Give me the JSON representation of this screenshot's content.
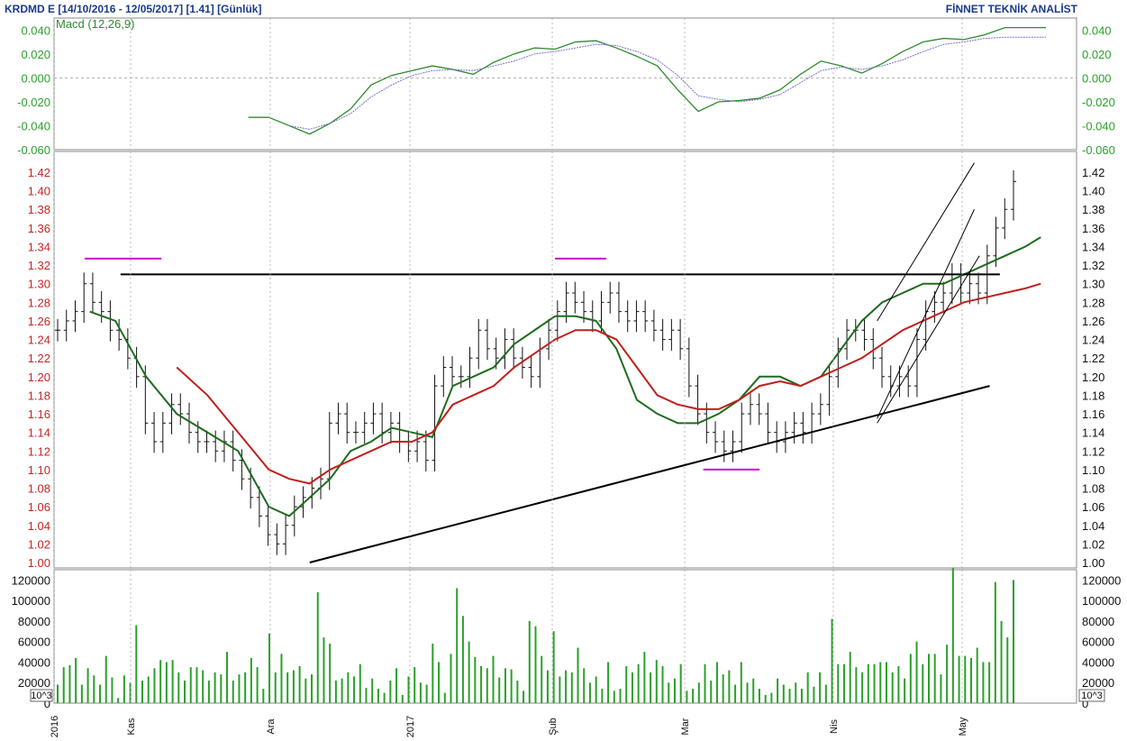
{
  "header": {
    "title": "KRDMD E  [14/10/2016 - 12/05/2017]  [1.41]  [Günlük]",
    "brand": "FİNNET TEKNİK ANALİST"
  },
  "colors": {
    "price_axis": "#cc2222",
    "macd_axis": "#2aa02a",
    "volume": "#2aa02a",
    "ema_fast": "#1f6b1f",
    "ema_slow": "#c0201c",
    "macd_line": "#2e8b2e",
    "signal_line": "#7a6fc8",
    "trendline": "#000000",
    "marker": "#cc00cc"
  },
  "chart_data": [
    {
      "type": "line",
      "panel": "macd",
      "title": "Macd (12,26,9)",
      "ylim": [
        -0.06,
        0.05
      ],
      "yticks": [
        "0.040",
        "0.020",
        "0.000",
        "-0.020",
        "-0.040",
        "-0.060"
      ],
      "series": [
        {
          "role": "macd",
          "x": [
            0.19,
            0.21,
            0.23,
            0.25,
            0.27,
            0.29,
            0.31,
            0.33,
            0.35,
            0.37,
            0.39,
            0.41,
            0.43,
            0.45,
            0.47,
            0.49,
            0.51,
            0.53,
            0.55,
            0.57,
            0.59,
            0.61,
            0.63,
            0.65,
            0.67,
            0.69,
            0.71,
            0.73,
            0.75,
            0.77,
            0.79,
            0.81,
            0.83,
            0.85,
            0.87,
            0.89,
            0.91,
            0.93,
            0.95,
            0.97
          ],
          "values": [
            -0.033,
            -0.033,
            -0.04,
            -0.047,
            -0.038,
            -0.026,
            -0.006,
            0.002,
            0.006,
            0.01,
            0.007,
            0.003,
            0.013,
            0.02,
            0.025,
            0.024,
            0.03,
            0.031,
            0.025,
            0.018,
            0.01,
            -0.01,
            -0.028,
            -0.02,
            -0.019,
            -0.017,
            -0.01,
            0.003,
            0.014,
            0.01,
            0.004,
            0.012,
            0.022,
            0.03,
            0.033,
            0.032,
            0.036,
            0.042,
            0.042,
            0.042
          ]
        },
        {
          "role": "signal",
          "x": [
            0.23,
            0.25,
            0.27,
            0.29,
            0.31,
            0.33,
            0.35,
            0.37,
            0.39,
            0.41,
            0.43,
            0.45,
            0.47,
            0.49,
            0.51,
            0.53,
            0.55,
            0.57,
            0.59,
            0.61,
            0.63,
            0.65,
            0.67,
            0.69,
            0.71,
            0.73,
            0.75,
            0.77,
            0.79,
            0.81,
            0.83,
            0.85,
            0.87,
            0.89,
            0.91,
            0.93,
            0.95,
            0.97
          ],
          "values": [
            -0.04,
            -0.043,
            -0.038,
            -0.03,
            -0.016,
            -0.006,
            0.002,
            0.006,
            0.007,
            0.006,
            0.01,
            0.014,
            0.02,
            0.022,
            0.025,
            0.028,
            0.027,
            0.022,
            0.015,
            0.002,
            -0.015,
            -0.018,
            -0.02,
            -0.018,
            -0.014,
            -0.004,
            0.006,
            0.009,
            0.007,
            0.01,
            0.015,
            0.022,
            0.028,
            0.03,
            0.033,
            0.034,
            0.034,
            0.034
          ]
        }
      ]
    },
    {
      "type": "candlestick",
      "panel": "price",
      "ylim": [
        1.0,
        1.44
      ],
      "yticks": [
        "1.42",
        "1.40",
        "1.38",
        "1.36",
        "1.34",
        "1.32",
        "1.30",
        "1.28",
        "1.26",
        "1.24",
        "1.22",
        "1.20",
        "1.18",
        "1.16",
        "1.14",
        "1.12",
        "1.10",
        "1.08",
        "1.06",
        "1.04",
        "1.02",
        "1.00"
      ],
      "x_labels": [
        "2016",
        "Kas",
        "Ara",
        "2017",
        "Şub",
        "Mar",
        "Nis",
        "May"
      ],
      "close": [
        1.25,
        1.26,
        1.27,
        1.3,
        1.28,
        1.27,
        1.25,
        1.24,
        1.22,
        1.2,
        1.15,
        1.13,
        1.15,
        1.17,
        1.16,
        1.14,
        1.13,
        1.13,
        1.12,
        1.13,
        1.11,
        1.09,
        1.07,
        1.05,
        1.03,
        1.02,
        1.04,
        1.06,
        1.07,
        1.08,
        1.09,
        1.15,
        1.16,
        1.14,
        1.14,
        1.15,
        1.16,
        1.14,
        1.15,
        1.13,
        1.12,
        1.13,
        1.11,
        1.19,
        1.21,
        1.2,
        1.2,
        1.22,
        1.25,
        1.23,
        1.22,
        1.24,
        1.22,
        1.21,
        1.2,
        1.23,
        1.25,
        1.27,
        1.29,
        1.28,
        1.27,
        1.26,
        1.28,
        1.29,
        1.27,
        1.26,
        1.27,
        1.26,
        1.25,
        1.24,
        1.25,
        1.23,
        1.19,
        1.16,
        1.14,
        1.13,
        1.12,
        1.13,
        1.16,
        1.17,
        1.16,
        1.14,
        1.13,
        1.14,
        1.15,
        1.14,
        1.16,
        1.17,
        1.2,
        1.23,
        1.25,
        1.25,
        1.24,
        1.22,
        1.2,
        1.19,
        1.2,
        1.19,
        1.24,
        1.27,
        1.28,
        1.29,
        1.31,
        1.29,
        1.3,
        1.29,
        1.33,
        1.36,
        1.38,
        1.41
      ],
      "ema_fast": {
        "x": [
          0.035,
          0.06,
          0.09,
          0.12,
          0.15,
          0.18,
          0.21,
          0.23,
          0.25,
          0.27,
          0.29,
          0.31,
          0.33,
          0.35,
          0.37,
          0.39,
          0.41,
          0.43,
          0.45,
          0.47,
          0.49,
          0.51,
          0.53,
          0.55,
          0.57,
          0.59,
          0.61,
          0.63,
          0.65,
          0.67,
          0.69,
          0.71,
          0.73,
          0.75,
          0.77,
          0.79,
          0.81,
          0.83,
          0.85,
          0.87,
          0.89,
          0.91,
          0.93,
          0.95,
          0.965
        ],
        "values": [
          1.27,
          1.26,
          1.2,
          1.16,
          1.14,
          1.12,
          1.06,
          1.05,
          1.07,
          1.09,
          1.12,
          1.13,
          1.145,
          1.14,
          1.135,
          1.19,
          1.2,
          1.21,
          1.235,
          1.25,
          1.265,
          1.265,
          1.26,
          1.23,
          1.175,
          1.16,
          1.15,
          1.15,
          1.16,
          1.175,
          1.2,
          1.2,
          1.19,
          1.2,
          1.23,
          1.26,
          1.28,
          1.29,
          1.3,
          1.3,
          1.31,
          1.32,
          1.33,
          1.34,
          1.35
        ]
      },
      "ema_slow": {
        "x": [
          0.12,
          0.15,
          0.18,
          0.21,
          0.23,
          0.25,
          0.27,
          0.29,
          0.31,
          0.33,
          0.35,
          0.37,
          0.39,
          0.41,
          0.43,
          0.45,
          0.47,
          0.49,
          0.51,
          0.53,
          0.55,
          0.57,
          0.59,
          0.61,
          0.63,
          0.65,
          0.67,
          0.69,
          0.71,
          0.73,
          0.75,
          0.77,
          0.79,
          0.81,
          0.83,
          0.85,
          0.87,
          0.89,
          0.91,
          0.93,
          0.95,
          0.965
        ],
        "values": [
          1.21,
          1.18,
          1.14,
          1.1,
          1.09,
          1.085,
          1.1,
          1.11,
          1.12,
          1.13,
          1.13,
          1.14,
          1.17,
          1.18,
          1.19,
          1.21,
          1.225,
          1.24,
          1.25,
          1.25,
          1.24,
          1.21,
          1.18,
          1.17,
          1.165,
          1.165,
          1.175,
          1.19,
          1.195,
          1.19,
          1.2,
          1.21,
          1.22,
          1.235,
          1.25,
          1.26,
          1.27,
          1.28,
          1.285,
          1.29,
          1.295,
          1.3
        ]
      },
      "lines": [
        {
          "name": "resistance",
          "x": [
            0.065,
            0.925
          ],
          "y": [
            1.31,
            1.31
          ]
        },
        {
          "name": "support",
          "x": [
            0.25,
            0.915
          ],
          "y": [
            1.0,
            1.19
          ]
        },
        {
          "name": "channel-upper",
          "x": [
            0.805,
            0.9
          ],
          "y": [
            1.26,
            1.43
          ]
        },
        {
          "name": "channel-mid",
          "x": [
            0.805,
            0.9
          ],
          "y": [
            1.155,
            1.38
          ]
        },
        {
          "name": "channel-lower",
          "x": [
            0.805,
            0.905
          ],
          "y": [
            1.15,
            1.33
          ]
        }
      ],
      "markers": [
        {
          "x": [
            0.03,
            0.105
          ],
          "y": 1.327
        },
        {
          "x": [
            0.49,
            0.54
          ],
          "y": 1.327
        },
        {
          "x": [
            0.635,
            0.69
          ],
          "y": 1.1
        }
      ]
    },
    {
      "type": "bar",
      "panel": "volume",
      "ylim": [
        0,
        130000
      ],
      "yticks": [
        "120000",
        "100000",
        "80000",
        "60000",
        "40000",
        "20000",
        "0"
      ],
      "unit_label": "10^3",
      "values": [
        18,
        35,
        37,
        44,
        18,
        34,
        27,
        18,
        46,
        25,
        5,
        27,
        20,
        76,
        22,
        26,
        34,
        42,
        40,
        42,
        30,
        22,
        35,
        35,
        32,
        22,
        30,
        28,
        50,
        22,
        28,
        30,
        44,
        35,
        14,
        68,
        30,
        48,
        30,
        32,
        36,
        24,
        28,
        108,
        64,
        58,
        22,
        24,
        30,
        26,
        38,
        15,
        24,
        14,
        10,
        22,
        34,
        8,
        26,
        35,
        20,
        18,
        58,
        40,
        10,
        48,
        112,
        85,
        60,
        45,
        36,
        34,
        46,
        25,
        34,
        33,
        22,
        12,
        80,
        75,
        46,
        32,
        70,
        26,
        32,
        30,
        54,
        34,
        20,
        26,
        14,
        40,
        12,
        14,
        36,
        30,
        38,
        50,
        30,
        42,
        36,
        20,
        24,
        38,
        12,
        14,
        20,
        38,
        22,
        40,
        28,
        32,
        18,
        40,
        20,
        24,
        14,
        8,
        10,
        24,
        18,
        14,
        20,
        14,
        30,
        16,
        30,
        18,
        82,
        38,
        38,
        50,
        35,
        30,
        38,
        38,
        40,
        40,
        30,
        36,
        24,
        48,
        60,
        38,
        48,
        48,
        28,
        57,
        132,
        46,
        46,
        44,
        54,
        40,
        40,
        118,
        80,
        64,
        120
      ]
    }
  ]
}
